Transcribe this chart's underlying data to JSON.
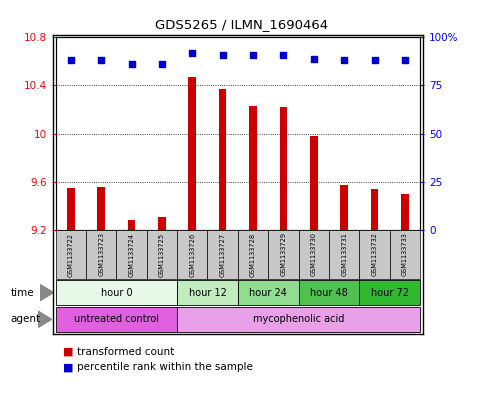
{
  "title": "GDS5265 / ILMN_1690464",
  "samples": [
    "GSM1133722",
    "GSM1133723",
    "GSM1133724",
    "GSM1133725",
    "GSM1133726",
    "GSM1133727",
    "GSM1133728",
    "GSM1133729",
    "GSM1133730",
    "GSM1133731",
    "GSM1133732",
    "GSM1133733"
  ],
  "transformed_counts": [
    9.55,
    9.56,
    9.28,
    9.31,
    10.47,
    10.37,
    10.23,
    10.22,
    9.98,
    9.57,
    9.54,
    9.5
  ],
  "percentile_ranks": [
    88,
    88,
    86,
    86,
    92,
    91,
    91,
    91,
    89,
    88,
    88,
    88
  ],
  "ylim_left": [
    9.2,
    10.8
  ],
  "ylim_right": [
    0,
    100
  ],
  "yticks_left": [
    9.2,
    9.6,
    10.0,
    10.4,
    10.8
  ],
  "yticks_right": [
    0,
    25,
    50,
    75,
    100
  ],
  "bar_color": "#CC0000",
  "dot_color": "#0000CC",
  "time_groups": [
    {
      "label": "hour 0",
      "start": 0,
      "end": 4,
      "color": "#e8f8e8"
    },
    {
      "label": "hour 12",
      "start": 4,
      "end": 6,
      "color": "#c0ecc0"
    },
    {
      "label": "hour 24",
      "start": 6,
      "end": 8,
      "color": "#90dc90"
    },
    {
      "label": "hour 48",
      "start": 8,
      "end": 10,
      "color": "#50c050"
    },
    {
      "label": "hour 72",
      "start": 10,
      "end": 12,
      "color": "#30b830"
    }
  ],
  "agent_groups": [
    {
      "label": "untreated control",
      "start": 0,
      "end": 4,
      "color": "#e060e0"
    },
    {
      "label": "mycophenolic acid",
      "start": 4,
      "end": 12,
      "color": "#e8a0e8"
    }
  ],
  "bar_bottom": 9.2,
  "sample_box_color": "#c8c8c8",
  "bg_color": "#ffffff"
}
